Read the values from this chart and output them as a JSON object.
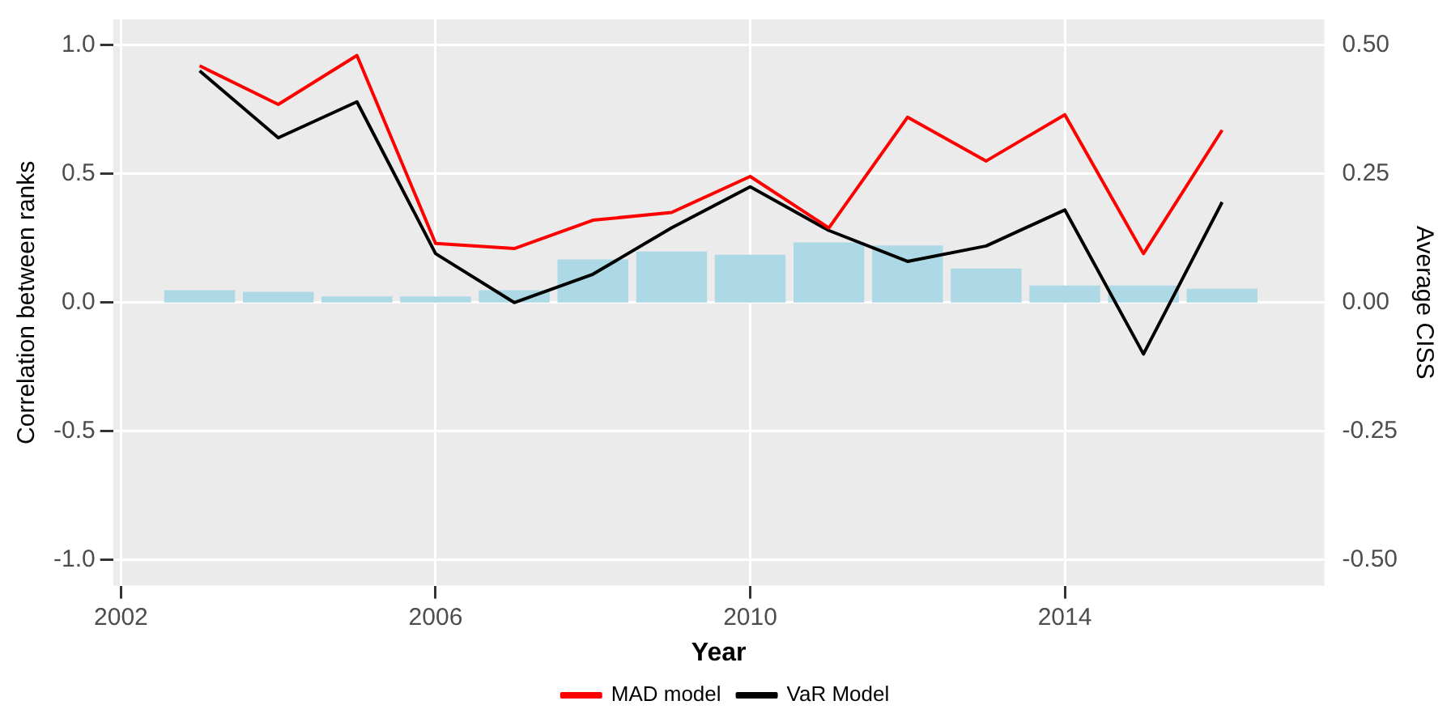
{
  "chart_data": {
    "type": "line",
    "xlabel": "Year",
    "ylabel": "Correlation between ranks",
    "y2label": "Average CISS",
    "x": [
      2003,
      2004,
      2005,
      2006,
      2007,
      2008,
      2009,
      2010,
      2011,
      2012,
      2013,
      2014,
      2015,
      2016
    ],
    "series": [
      {
        "type": "bar",
        "axis": "y2",
        "color": "#add8e6",
        "values": [
          0.024,
          0.021,
          0.012,
          0.012,
          0.024,
          0.084,
          0.099,
          0.093,
          0.117,
          0.111,
          0.066,
          0.033,
          0.033,
          0.027
        ]
      },
      {
        "name": "MAD model",
        "color": "#ff0000",
        "values": [
          0.92,
          0.77,
          0.96,
          0.23,
          0.21,
          0.32,
          0.35,
          0.49,
          0.29,
          0.72,
          0.55,
          0.73,
          0.19,
          0.67
        ]
      },
      {
        "name": "VaR Model",
        "color": "#000000",
        "values": [
          0.9,
          0.64,
          0.78,
          0.19,
          0.0,
          0.11,
          0.29,
          0.45,
          0.28,
          0.16,
          0.22,
          0.36,
          -0.2,
          0.39
        ]
      }
    ],
    "xlim": [
      2001.9,
      2017.3
    ],
    "xticks": [
      2002,
      2006,
      2010,
      2014
    ],
    "ylim": [
      -1.1,
      1.1
    ],
    "yticks": [
      {
        "value": -1,
        "label": "-1.0"
      },
      {
        "value": -0.5,
        "label": "-0.5"
      },
      {
        "value": 0,
        "label": "0.0"
      },
      {
        "value": 0.5,
        "label": "0.5"
      },
      {
        "value": 1,
        "label": "1.0"
      }
    ],
    "y2lim": [
      -0.55,
      0.55
    ],
    "y2ticks": [
      {
        "value": -0.5,
        "label": "-0.50"
      },
      {
        "value": -0.25,
        "label": "-0.25"
      },
      {
        "value": 0,
        "label": "0.00"
      },
      {
        "value": 0.25,
        "label": "0.25"
      },
      {
        "value": 0.5,
        "label": "0.50"
      }
    ],
    "grid": true,
    "legend": "bottom",
    "marker": "none",
    "line_style": "solid"
  }
}
